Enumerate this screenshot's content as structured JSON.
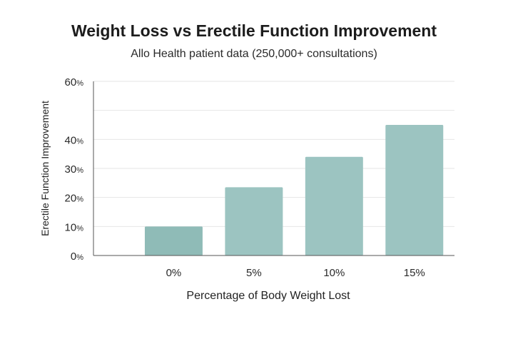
{
  "chart_data": {
    "type": "bar",
    "title": "Weight Loss vs Erectile Function Improvement",
    "subtitle": "Allo Health patient data (250,000+ consultations)",
    "xlabel": "Percentage of Body Weight Lost",
    "ylabel": "Erectile Function Improvement",
    "categories": [
      "0%",
      "5%",
      "10%",
      "15%"
    ],
    "values": [
      10,
      23.5,
      34,
      45
    ],
    "ylim": [
      0,
      60
    ],
    "yticks": [
      {
        "value": 0,
        "num": "0",
        "unit": "%"
      },
      {
        "value": 10,
        "num": "10",
        "unit": "%"
      },
      {
        "value": 20,
        "num": "20",
        "unit": "%"
      },
      {
        "value": 30,
        "num": "30",
        "unit": "%"
      },
      {
        "value": 40,
        "num": "40",
        "unit": "%"
      },
      {
        "value": 60,
        "num": "60",
        "unit": "%"
      }
    ],
    "gridlines": [
      0,
      10,
      20,
      30,
      40,
      50,
      60
    ],
    "grid": true,
    "legend": "none",
    "colors": {
      "bars": [
        "#8fbbb7",
        "#9cc4c1",
        "#9cc4c1",
        "#9cc4c1"
      ],
      "grid": "#e6e6e6",
      "axis": "#555555"
    }
  }
}
